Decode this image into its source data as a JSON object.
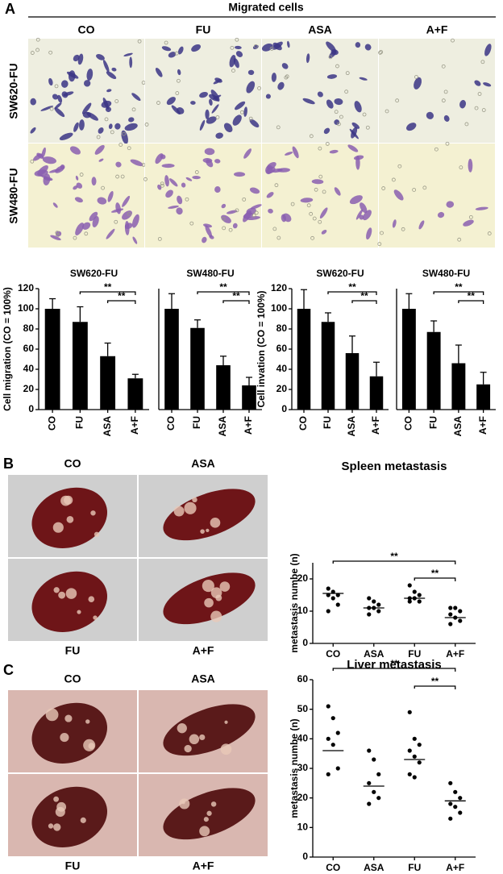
{
  "panel_a": {
    "label": "A",
    "title": "Migrated cells",
    "columns": [
      "CO",
      "FU",
      "ASA",
      "A+F"
    ],
    "rows": [
      "SW620-FU",
      "SW480-FU"
    ]
  },
  "panel_b": {
    "label": "B",
    "photos": [
      "CO",
      "ASA",
      "FU",
      "A+F"
    ]
  },
  "panel_c": {
    "label": "C",
    "photos": [
      "CO",
      "ASA",
      "FU",
      "A+F"
    ]
  },
  "chart_data": [
    {
      "type": "bar",
      "title": "SW620-FU",
      "ylabel": "Cell migration (CO = 100%)",
      "categories": [
        "CO",
        "FU",
        "ASA",
        "A+F"
      ],
      "values": [
        100,
        87,
        53,
        31
      ],
      "errors": [
        10,
        15,
        13,
        4
      ],
      "color": "#000000",
      "ylim": [
        0,
        120
      ],
      "yticks": [
        0,
        20,
        40,
        60,
        80,
        100,
        120
      ],
      "annotations": [
        {
          "label": "**",
          "between": [
            "FU",
            "A+F"
          ]
        },
        {
          "label": "**",
          "between": [
            "ASA",
            "A+F"
          ]
        }
      ]
    },
    {
      "type": "bar",
      "title": "SW480-FU",
      "categories": [
        "CO",
        "FU",
        "ASA",
        "A+F"
      ],
      "values": [
        100,
        81,
        44,
        24
      ],
      "errors": [
        15,
        8,
        9,
        8
      ],
      "color": "#000000",
      "ylim": [
        0,
        120
      ],
      "annotations": [
        {
          "label": "**",
          "between": [
            "FU",
            "A+F"
          ]
        },
        {
          "label": "**",
          "between": [
            "ASA",
            "A+F"
          ]
        }
      ]
    },
    {
      "type": "bar",
      "title": "SW620-FU",
      "ylabel": "Cell invation (CO = 100%)",
      "categories": [
        "CO",
        "FU",
        "ASA",
        "A+F"
      ],
      "values": [
        100,
        87,
        56,
        33
      ],
      "errors": [
        19,
        9,
        17,
        14
      ],
      "color": "#000000",
      "ylim": [
        0,
        120
      ],
      "yticks": [
        0,
        20,
        40,
        60,
        80,
        100,
        120
      ],
      "annotations": [
        {
          "label": "**",
          "between": [
            "FU",
            "A+F"
          ]
        },
        {
          "label": "**",
          "between": [
            "ASA",
            "A+F"
          ]
        }
      ]
    },
    {
      "type": "bar",
      "title": "SW480-FU",
      "categories": [
        "CO",
        "FU",
        "ASA",
        "A+F"
      ],
      "values": [
        100,
        77,
        46,
        25
      ],
      "errors": [
        15,
        11,
        18,
        12
      ],
      "color": "#000000",
      "ylim": [
        0,
        120
      ],
      "annotations": [
        {
          "label": "**",
          "between": [
            "FU",
            "A+F"
          ]
        },
        {
          "label": "**",
          "between": [
            "ASA",
            "A+F"
          ]
        }
      ]
    },
    {
      "type": "dot",
      "title": "Spleen metastasis",
      "ylabel": "metastasis numbe (n)",
      "categories": [
        "CO",
        "ASA",
        "FU",
        "A+F"
      ],
      "points": [
        [
          17,
          16,
          15,
          15,
          14,
          12,
          10
        ],
        [
          14,
          13,
          12,
          11,
          11,
          10,
          9
        ],
        [
          18,
          16,
          15,
          14,
          14,
          13,
          13
        ],
        [
          11,
          11,
          10,
          9,
          8,
          7,
          6
        ]
      ],
      "means": [
        15.5,
        11,
        14,
        8
      ],
      "color": "#000000",
      "ylim": [
        0,
        25
      ],
      "yticks": [
        0,
        10,
        20
      ],
      "annotations": [
        {
          "label": "**",
          "between": [
            "CO",
            "A+F"
          ]
        },
        {
          "label": "**",
          "between": [
            "FU",
            "A+F"
          ]
        }
      ]
    },
    {
      "type": "dot",
      "title": "Liver metastasis",
      "ylabel": "metastasis numbe (n)",
      "categories": [
        "CO",
        "ASA",
        "FU",
        "A+F"
      ],
      "points": [
        [
          51,
          47,
          42,
          40,
          38,
          30,
          28
        ],
        [
          36,
          33,
          28,
          25,
          22,
          20,
          18
        ],
        [
          49,
          40,
          38,
          36,
          34,
          32,
          28,
          27
        ],
        [
          25,
          22,
          20,
          18,
          17,
          15,
          13
        ]
      ],
      "means": [
        36,
        24,
        33,
        19
      ],
      "color": "#000000",
      "ylim": [
        0,
        60
      ],
      "yticks": [
        0,
        10,
        20,
        30,
        40,
        50,
        60
      ],
      "annotations": [
        {
          "label": "**",
          "between": [
            "CO",
            "A+F"
          ]
        },
        {
          "label": "**",
          "between": [
            "FU",
            "A+F"
          ]
        }
      ]
    }
  ]
}
